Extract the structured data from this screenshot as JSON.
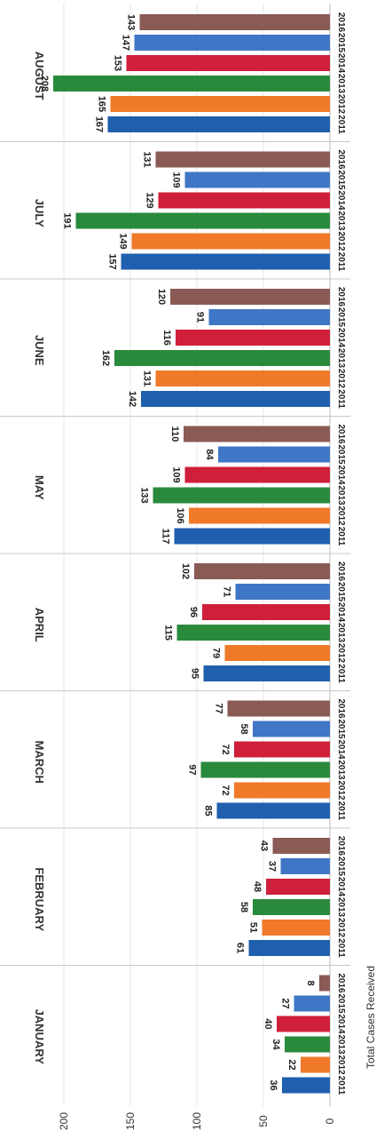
{
  "chart_data": {
    "type": "bar",
    "title": "",
    "ylabel": "Total Cases Received",
    "xlabel": "",
    "ylim": [
      0,
      220
    ],
    "yticks": [
      0,
      50,
      100,
      150,
      200
    ],
    "grid": true,
    "orientation": "rotated-90",
    "categories": [
      "JANUARY",
      "FEBRUARY",
      "MARCH",
      "APRIL",
      "MAY",
      "JUNE",
      "JULY",
      "AUGUST"
    ],
    "series": [
      {
        "name": "2011",
        "color": "#1f5fae",
        "values": [
          36,
          61,
          85,
          95,
          117,
          142,
          157,
          167
        ]
      },
      {
        "name": "2012",
        "color": "#f07a2a",
        "values": [
          22,
          51,
          72,
          79,
          106,
          131,
          149,
          165
        ]
      },
      {
        "name": "2013",
        "color": "#2a8a3c",
        "values": [
          34,
          58,
          97,
          115,
          133,
          162,
          191,
          208
        ]
      },
      {
        "name": "2014",
        "color": "#cf1f3a",
        "values": [
          40,
          48,
          72,
          96,
          109,
          116,
          129,
          153
        ]
      },
      {
        "name": "2015",
        "color": "#3f76c6",
        "values": [
          27,
          37,
          58,
          71,
          84,
          91,
          109,
          147
        ]
      },
      {
        "name": "2016",
        "color": "#8a5a55",
        "values": [
          8,
          43,
          77,
          102,
          110,
          120,
          131,
          143
        ]
      }
    ]
  }
}
